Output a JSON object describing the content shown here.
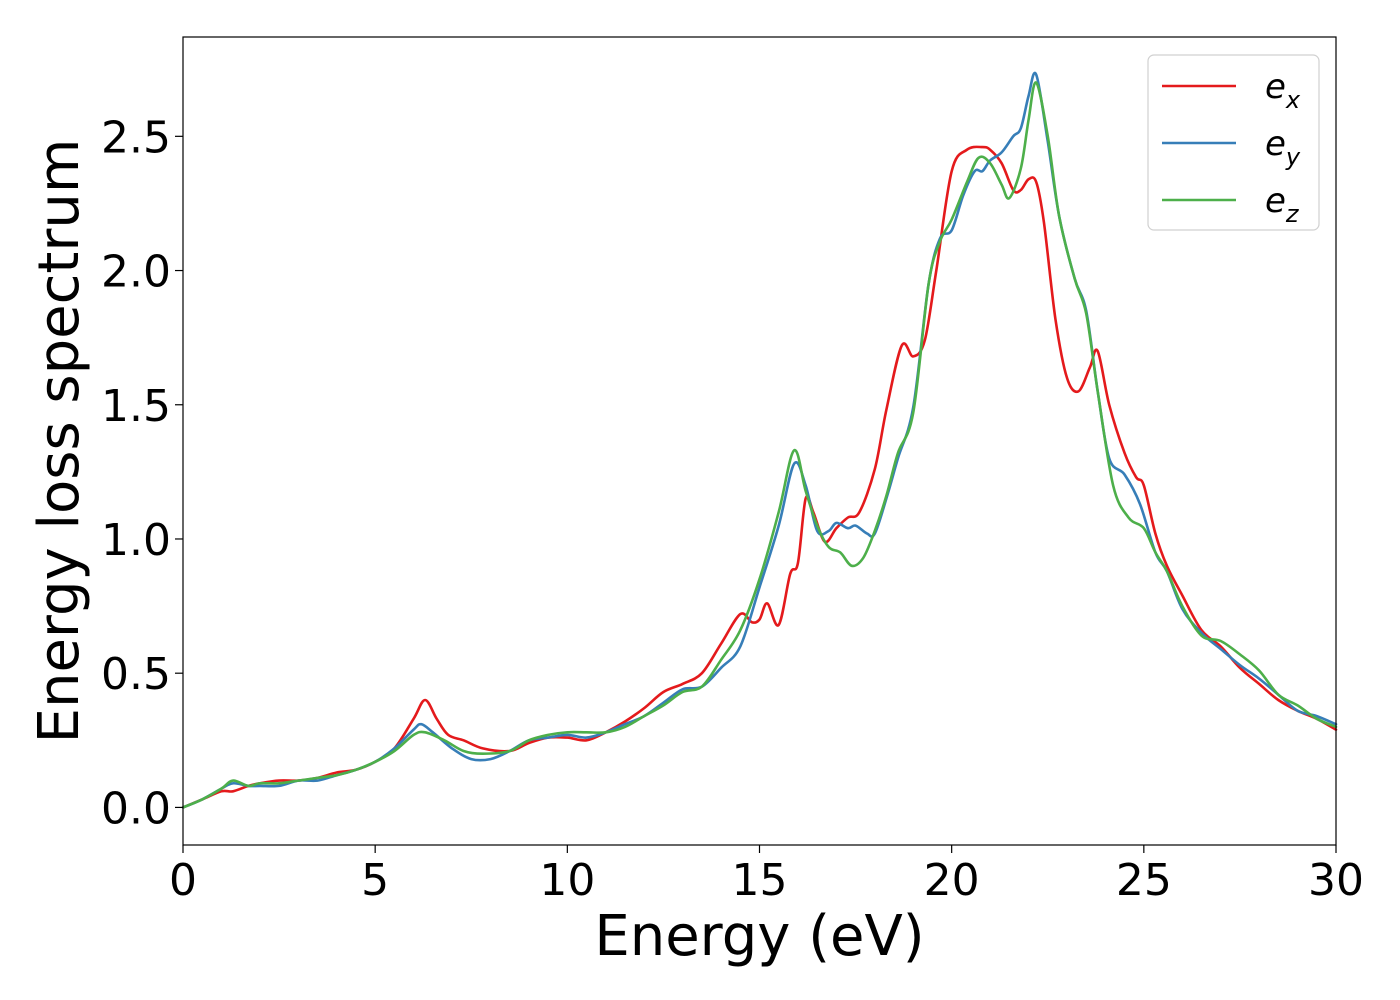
{
  "chart_data": {
    "type": "line",
    "title": "",
    "xlabel": "Energy (eV)",
    "ylabel": "Energy loss spectrum",
    "xlim": [
      0,
      30
    ],
    "ylim": [
      -0.14,
      2.87
    ],
    "xticks": [
      0,
      5,
      10,
      15,
      20,
      25,
      30
    ],
    "xtick_labels": [
      "0",
      "5",
      "10",
      "15",
      "20",
      "25",
      "30"
    ],
    "yticks": [
      0.0,
      0.5,
      1.0,
      1.5,
      2.0,
      2.5
    ],
    "ytick_labels": [
      "0.0",
      "0.5",
      "1.0",
      "1.5",
      "2.0",
      "2.5"
    ],
    "grid": false,
    "legend_position": "top-right",
    "series": [
      {
        "name": "e_x",
        "legend_base": "e",
        "legend_sub": "x",
        "color": "#e41a1c",
        "x": [
          0,
          0.5,
          1.0,
          1.3,
          1.7,
          2.0,
          2.5,
          3.0,
          3.5,
          4.0,
          4.5,
          5.0,
          5.5,
          6.0,
          6.3,
          6.6,
          6.9,
          7.3,
          7.8,
          8.5,
          9.0,
          9.5,
          10.0,
          10.5,
          11.0,
          11.5,
          12.0,
          12.5,
          13.0,
          13.5,
          14.0,
          14.5,
          14.8,
          15.0,
          15.2,
          15.5,
          15.8,
          16.0,
          16.2,
          16.4,
          16.7,
          17.0,
          17.3,
          17.6,
          18.0,
          18.3,
          18.7,
          19.0,
          19.3,
          19.6,
          20.0,
          20.4,
          20.8,
          21.0,
          21.3,
          21.6,
          21.8,
          22.0,
          22.2,
          22.4,
          22.7,
          23.0,
          23.3,
          23.6,
          23.8,
          24.1,
          24.5,
          24.8,
          25.0,
          25.3,
          25.6,
          26.0,
          26.5,
          27.0,
          27.5,
          28.0,
          28.5,
          29.0,
          29.5,
          30.0
        ],
        "y": [
          0.0,
          0.03,
          0.06,
          0.06,
          0.08,
          0.09,
          0.1,
          0.1,
          0.11,
          0.13,
          0.14,
          0.17,
          0.22,
          0.33,
          0.4,
          0.33,
          0.27,
          0.25,
          0.22,
          0.21,
          0.24,
          0.26,
          0.26,
          0.25,
          0.28,
          0.32,
          0.37,
          0.43,
          0.46,
          0.5,
          0.61,
          0.72,
          0.69,
          0.7,
          0.76,
          0.68,
          0.87,
          0.91,
          1.15,
          1.1,
          0.99,
          1.04,
          1.08,
          1.1,
          1.26,
          1.48,
          1.72,
          1.68,
          1.74,
          2.0,
          2.37,
          2.45,
          2.46,
          2.45,
          2.4,
          2.3,
          2.3,
          2.34,
          2.33,
          2.18,
          1.82,
          1.6,
          1.55,
          1.64,
          1.7,
          1.5,
          1.32,
          1.23,
          1.2,
          1.02,
          0.9,
          0.79,
          0.66,
          0.6,
          0.52,
          0.46,
          0.4,
          0.36,
          0.33,
          0.29
        ]
      },
      {
        "name": "e_y",
        "legend_base": "e",
        "legend_sub": "y",
        "color": "#377eb8",
        "x": [
          0,
          0.5,
          1.0,
          1.3,
          1.7,
          2.0,
          2.5,
          3.0,
          3.5,
          4.0,
          4.5,
          5.0,
          5.5,
          6.0,
          6.2,
          6.5,
          7.0,
          7.5,
          8.0,
          8.5,
          9.0,
          9.5,
          10.0,
          10.5,
          11.0,
          11.5,
          12.0,
          12.5,
          13.0,
          13.5,
          14.0,
          14.5,
          15.0,
          15.5,
          15.9,
          16.2,
          16.5,
          16.8,
          17.0,
          17.3,
          17.5,
          17.8,
          18.0,
          18.3,
          18.6,
          19.0,
          19.4,
          19.7,
          20.0,
          20.3,
          20.6,
          20.8,
          21.0,
          21.3,
          21.6,
          21.8,
          22.0,
          22.2,
          22.5,
          22.8,
          23.2,
          23.5,
          23.8,
          24.1,
          24.5,
          24.9,
          25.3,
          25.6,
          26.0,
          26.5,
          27.0,
          27.5,
          28.0,
          28.5,
          29.0,
          29.5,
          30.0
        ],
        "y": [
          0.0,
          0.03,
          0.07,
          0.09,
          0.08,
          0.08,
          0.08,
          0.1,
          0.1,
          0.12,
          0.14,
          0.17,
          0.22,
          0.29,
          0.31,
          0.28,
          0.22,
          0.18,
          0.18,
          0.21,
          0.25,
          0.26,
          0.27,
          0.26,
          0.28,
          0.31,
          0.34,
          0.39,
          0.44,
          0.45,
          0.52,
          0.6,
          0.82,
          1.05,
          1.28,
          1.2,
          1.03,
          1.03,
          1.06,
          1.04,
          1.05,
          1.02,
          1.02,
          1.15,
          1.3,
          1.49,
          1.95,
          2.12,
          2.15,
          2.28,
          2.37,
          2.37,
          2.41,
          2.44,
          2.5,
          2.53,
          2.65,
          2.73,
          2.48,
          2.2,
          1.97,
          1.85,
          1.55,
          1.3,
          1.24,
          1.13,
          0.95,
          0.88,
          0.74,
          0.65,
          0.59,
          0.53,
          0.48,
          0.42,
          0.36,
          0.34,
          0.31
        ]
      },
      {
        "name": "e_z",
        "legend_base": "e",
        "legend_sub": "z",
        "color": "#4daf4a",
        "x": [
          0,
          0.5,
          1.0,
          1.3,
          1.7,
          2.0,
          2.5,
          3.0,
          3.5,
          4.0,
          4.5,
          5.0,
          5.5,
          6.0,
          6.3,
          6.8,
          7.3,
          7.8,
          8.5,
          9.0,
          9.5,
          10.0,
          10.5,
          11.0,
          11.5,
          12.0,
          12.5,
          13.0,
          13.5,
          14.0,
          14.5,
          15.0,
          15.5,
          15.9,
          16.2,
          16.5,
          16.8,
          17.1,
          17.4,
          17.7,
          18.0,
          18.3,
          18.6,
          19.0,
          19.4,
          19.7,
          20.0,
          20.4,
          20.7,
          21.0,
          21.3,
          21.5,
          21.8,
          22.0,
          22.2,
          22.5,
          22.8,
          23.2,
          23.5,
          23.8,
          24.2,
          24.6,
          25.0,
          25.3,
          25.6,
          26.0,
          26.5,
          27.0,
          27.5,
          28.0,
          28.5,
          29.0,
          29.5,
          30.0
        ],
        "y": [
          0.0,
          0.03,
          0.07,
          0.1,
          0.08,
          0.09,
          0.09,
          0.1,
          0.11,
          0.12,
          0.14,
          0.17,
          0.21,
          0.27,
          0.28,
          0.25,
          0.21,
          0.2,
          0.21,
          0.25,
          0.27,
          0.28,
          0.28,
          0.28,
          0.3,
          0.34,
          0.38,
          0.43,
          0.45,
          0.55,
          0.66,
          0.85,
          1.1,
          1.33,
          1.18,
          1.05,
          0.97,
          0.95,
          0.9,
          0.93,
          1.03,
          1.16,
          1.32,
          1.47,
          1.95,
          2.11,
          2.19,
          2.33,
          2.42,
          2.4,
          2.32,
          2.27,
          2.38,
          2.56,
          2.7,
          2.5,
          2.2,
          1.97,
          1.84,
          1.55,
          1.2,
          1.08,
          1.04,
          0.95,
          0.88,
          0.75,
          0.64,
          0.62,
          0.57,
          0.51,
          0.42,
          0.38,
          0.33,
          0.3
        ]
      }
    ]
  }
}
